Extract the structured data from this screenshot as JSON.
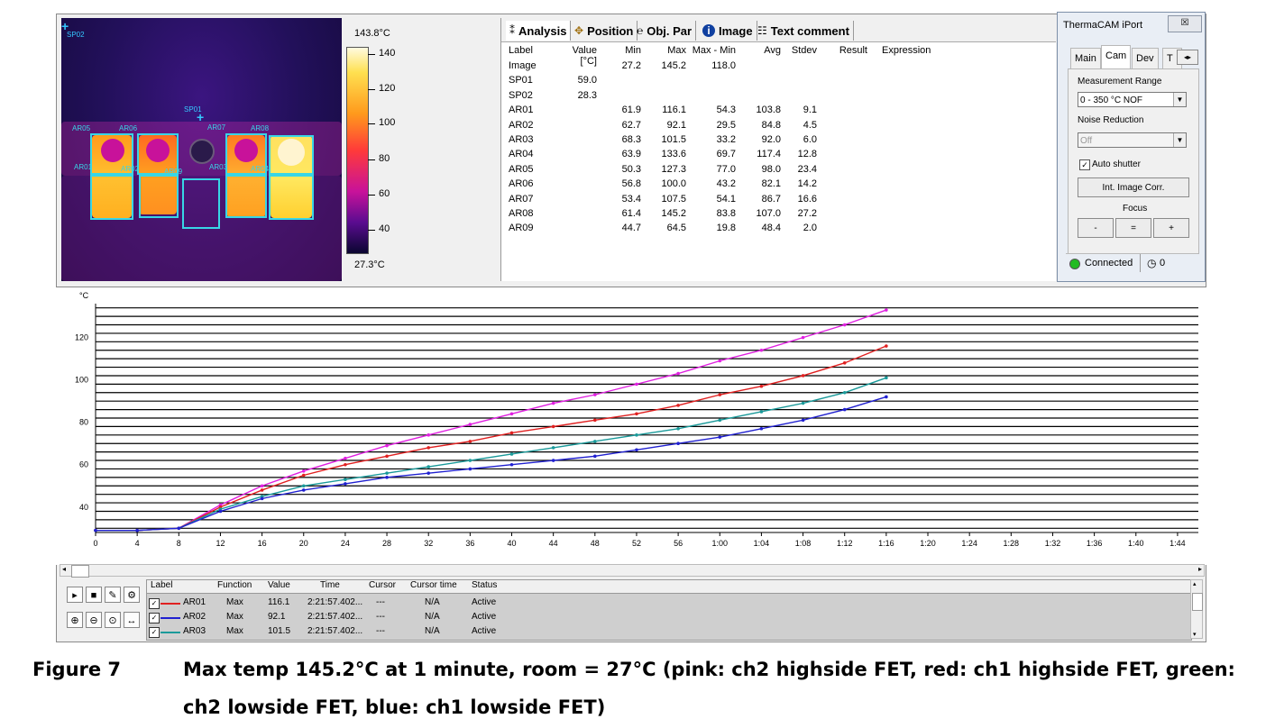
{
  "thermal": {
    "spots": [
      {
        "label": "SP02"
      },
      {
        "label": "SP01"
      }
    ],
    "areas": [
      "AR05",
      "AR06",
      "AR07",
      "AR08",
      "AR01",
      "AR02",
      "AR09",
      "AR03",
      "AR04"
    ]
  },
  "scale": {
    "max_label": "143.8°C",
    "min_label": "27.3°C",
    "ticks": [
      "140",
      "120",
      "100",
      "80",
      "60",
      "40"
    ]
  },
  "analysis": {
    "tabs": [
      {
        "label": "Analysis",
        "icon": "analysis-icon"
      },
      {
        "label": "Position",
        "icon": "position-icon"
      },
      {
        "label": "Obj. Par",
        "icon": "object-parameters-icon"
      },
      {
        "label": "Image",
        "icon": "info-icon"
      },
      {
        "label": "Text comment",
        "icon": "text-comment-icon"
      }
    ],
    "columns": [
      "Label",
      "Value [°C]",
      "Min",
      "Max",
      "Max - Min",
      "Avg",
      "Stdev",
      "Result",
      "Expression"
    ],
    "rows": [
      {
        "label": "Image",
        "value": "",
        "min": "27.2",
        "max": "145.2",
        "maxmin": "118.0",
        "avg": "",
        "stdev": ""
      },
      {
        "label": "SP01",
        "value": "59.0",
        "min": "",
        "max": "",
        "maxmin": "",
        "avg": "",
        "stdev": ""
      },
      {
        "label": "SP02",
        "value": "28.3",
        "min": "",
        "max": "",
        "maxmin": "",
        "avg": "",
        "stdev": ""
      },
      {
        "label": "AR01",
        "value": "",
        "min": "61.9",
        "max": "116.1",
        "maxmin": "54.3",
        "avg": "103.8",
        "stdev": "9.1"
      },
      {
        "label": "AR02",
        "value": "",
        "min": "62.7",
        "max": "92.1",
        "maxmin": "29.5",
        "avg": "84.8",
        "stdev": "4.5"
      },
      {
        "label": "AR03",
        "value": "",
        "min": "68.3",
        "max": "101.5",
        "maxmin": "33.2",
        "avg": "92.0",
        "stdev": "6.0"
      },
      {
        "label": "AR04",
        "value": "",
        "min": "63.9",
        "max": "133.6",
        "maxmin": "69.7",
        "avg": "117.4",
        "stdev": "12.8"
      },
      {
        "label": "AR05",
        "value": "",
        "min": "50.3",
        "max": "127.3",
        "maxmin": "77.0",
        "avg": "98.0",
        "stdev": "23.4"
      },
      {
        "label": "AR06",
        "value": "",
        "min": "56.8",
        "max": "100.0",
        "maxmin": "43.2",
        "avg": "82.1",
        "stdev": "14.2"
      },
      {
        "label": "AR07",
        "value": "",
        "min": "53.4",
        "max": "107.5",
        "maxmin": "54.1",
        "avg": "86.7",
        "stdev": "16.6"
      },
      {
        "label": "AR08",
        "value": "",
        "min": "61.4",
        "max": "145.2",
        "maxmin": "83.8",
        "avg": "107.0",
        "stdev": "27.2"
      },
      {
        "label": "AR09",
        "value": "",
        "min": "44.7",
        "max": "64.5",
        "maxmin": "19.8",
        "avg": "48.4",
        "stdev": "2.0"
      }
    ]
  },
  "iport": {
    "title": "ThermaCAM iPort",
    "close": "☒",
    "tabs": [
      "Main",
      "Cam",
      "Dev",
      "T"
    ],
    "measurement_range_label": "Measurement Range",
    "measurement_range_value": "0 - 350 °C NOF",
    "noise_label": "Noise Reduction",
    "noise_value": "Off",
    "auto_shutter": "Auto shutter",
    "int_corr": "Int. Image Corr.",
    "focus_label": "Focus",
    "focus_buttons": [
      "-",
      "=",
      "+"
    ],
    "status": "Connected",
    "counter": "0",
    "status_color": "#22bb22"
  },
  "chart_data": {
    "type": "line",
    "ylabel": "°C",
    "x_ticks": [
      "0",
      "4",
      "8",
      "12",
      "16",
      "20",
      "24",
      "28",
      "32",
      "36",
      "40",
      "44",
      "48",
      "52",
      "56",
      "1:00",
      "1:04",
      "1:08",
      "1:12",
      "1:16",
      "1:20",
      "1:24",
      "1:28",
      "1:32",
      "1:36",
      "1:40",
      "1:44"
    ],
    "y_ticks": [
      40,
      60,
      80,
      100,
      120
    ],
    "ylim": [
      28,
      136
    ],
    "xlim": [
      0,
      106
    ],
    "x_unit": "seconds",
    "series": [
      {
        "color": "#e020e0",
        "x": [
          0,
          4,
          8,
          12,
          16,
          20,
          24,
          28,
          32,
          36,
          40,
          44,
          48,
          52,
          56,
          60,
          64,
          68,
          72,
          76
        ],
        "y": [
          29,
          29,
          30,
          41,
          50,
          57,
          63,
          69,
          74,
          79,
          84,
          89,
          93,
          98,
          103,
          109,
          114,
          120,
          126,
          133
        ]
      },
      {
        "color": "#e02020",
        "x": [
          0,
          4,
          8,
          12,
          16,
          20,
          24,
          28,
          32,
          36,
          40,
          44,
          48,
          52,
          56,
          60,
          64,
          68,
          72,
          76
        ],
        "y": [
          29,
          29,
          30,
          40,
          48,
          55,
          60,
          64,
          68,
          71,
          75,
          78,
          81,
          84,
          88,
          93,
          97,
          102,
          108,
          116
        ]
      },
      {
        "color": "#1a9a9a",
        "x": [
          0,
          4,
          8,
          12,
          16,
          20,
          24,
          28,
          32,
          36,
          40,
          44,
          48,
          52,
          56,
          60,
          64,
          68,
          72,
          76
        ],
        "y": [
          29,
          29,
          30,
          39,
          45,
          50,
          53,
          56,
          59,
          62,
          65,
          68,
          71,
          74,
          77,
          81,
          85,
          89,
          94,
          101
        ]
      },
      {
        "color": "#2020d0",
        "x": [
          0,
          4,
          8,
          12,
          16,
          20,
          24,
          28,
          32,
          36,
          40,
          44,
          48,
          52,
          56,
          60,
          64,
          68,
          72,
          76
        ],
        "y": [
          29,
          29,
          30,
          38,
          44,
          48,
          51,
          54,
          56,
          58,
          60,
          62,
          64,
          67,
          70,
          73,
          77,
          81,
          86,
          92
        ]
      }
    ]
  },
  "bottom_table": {
    "columns": [
      "Label",
      "Function",
      "Value",
      "Time",
      "Cursor",
      "Cursor time",
      "Status"
    ],
    "rows": [
      {
        "label": "AR01",
        "function": "Max",
        "value": "116.1",
        "time": "2:21:57.402...",
        "cursor": "---",
        "ctime": "N/A",
        "status": "Active",
        "color": "#e02020"
      },
      {
        "label": "AR02",
        "function": "Max",
        "value": "92.1",
        "time": "2:21:57.402...",
        "cursor": "---",
        "ctime": "N/A",
        "status": "Active",
        "color": "#2020d0"
      },
      {
        "label": "AR03",
        "function": "Max",
        "value": "101.5",
        "time": "2:21:57.402...",
        "cursor": "---",
        "ctime": "N/A",
        "status": "Active",
        "color": "#1a9a9a"
      }
    ]
  },
  "caption": {
    "figure": "Figure 7",
    "text": "Max temp 145.2°C at 1 minute, room = 27°C (pink: ch2 highside FET, red: ch1 highside FET, green: ch2 lowside FET, blue: ch1 lowside FET)"
  }
}
